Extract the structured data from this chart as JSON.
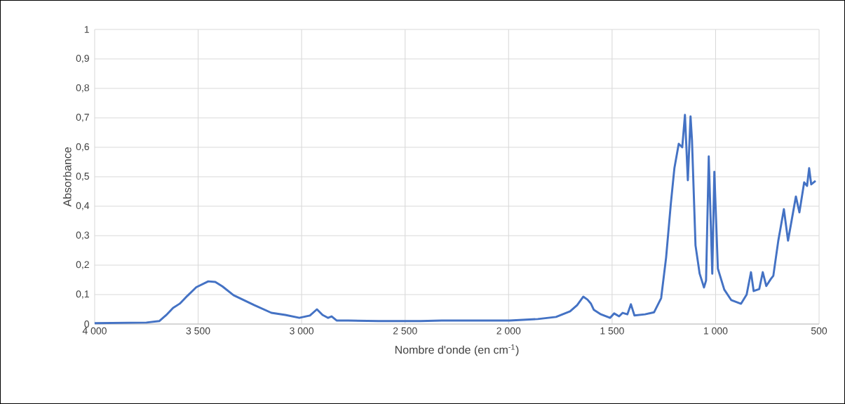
{
  "chart_data": {
    "type": "line",
    "xlabel": "Nombre d'onde (en cm$^{-1}$)",
    "ylabel": "Absorbance",
    "color": "#4472c4",
    "grid": true,
    "marker": "none",
    "line_style": "solid",
    "xlim": [
      4000,
      500
    ],
    "ylim": [
      0,
      1
    ],
    "xticks": [
      {
        "value": 4000,
        "label": "4 000"
      },
      {
        "value": 3500,
        "label": "3 500"
      },
      {
        "value": 3000,
        "label": "3 000"
      },
      {
        "value": 2500,
        "label": "2 500"
      },
      {
        "value": 2000,
        "label": "2 000"
      },
      {
        "value": 1500,
        "label": "1 500"
      },
      {
        "value": 1000,
        "label": "1 000"
      },
      500
    ],
    "yticks": [
      0,
      {
        "value": 0.1,
        "label": "0,1"
      },
      {
        "value": 0.2,
        "label": "0,2"
      },
      {
        "value": 0.3,
        "label": "0,3"
      },
      {
        "value": 0.4,
        "label": "0,4"
      },
      {
        "value": 0.5,
        "label": "0,5"
      },
      {
        "value": 0.6,
        "label": "0,6"
      },
      {
        "value": 0.7,
        "label": "0,7"
      },
      {
        "value": 0.8,
        "label": "0,8"
      },
      {
        "value": 0.9,
        "label": "0,9"
      },
      1
    ],
    "x": [
      4000,
      3750,
      3688,
      3655,
      3621,
      3587,
      3553,
      3509,
      3451,
      3417,
      3383,
      3329,
      3228,
      3146,
      3079,
      3011,
      2960,
      2926,
      2899,
      2872,
      2855,
      2831,
      2774,
      2628,
      2425,
      2323,
      2198,
      1995,
      1859,
      1771,
      1703,
      1669,
      1639,
      1619,
      1602,
      1588,
      1554,
      1510,
      1490,
      1466,
      1449,
      1426,
      1409,
      1392,
      1341,
      1297,
      1263,
      1239,
      1216,
      1199,
      1178,
      1161,
      1148,
      1134,
      1121,
      1114,
      1097,
      1077,
      1056,
      1046,
      1033,
      1016,
      1006,
      989,
      958,
      924,
      877,
      850,
      829,
      816,
      789,
      772,
      755,
      734,
      721,
      697,
      670,
      650,
      612,
      595,
      572,
      558,
      548,
      538,
      517
    ],
    "values": [
      0.003,
      0.005,
      0.01,
      0.03,
      0.055,
      0.07,
      0.095,
      0.125,
      0.145,
      0.143,
      0.128,
      0.098,
      0.064,
      0.038,
      0.031,
      0.021,
      0.029,
      0.05,
      0.031,
      0.021,
      0.026,
      0.012,
      0.012,
      0.01,
      0.01,
      0.012,
      0.012,
      0.012,
      0.017,
      0.024,
      0.043,
      0.064,
      0.093,
      0.083,
      0.069,
      0.048,
      0.033,
      0.021,
      0.036,
      0.026,
      0.038,
      0.033,
      0.067,
      0.029,
      0.033,
      0.04,
      0.088,
      0.226,
      0.41,
      0.529,
      0.612,
      0.6,
      0.71,
      0.488,
      0.705,
      0.624,
      0.267,
      0.171,
      0.124,
      0.148,
      0.569,
      0.171,
      0.517,
      0.188,
      0.117,
      0.081,
      0.069,
      0.1,
      0.176,
      0.112,
      0.119,
      0.176,
      0.129,
      0.152,
      0.164,
      0.283,
      0.39,
      0.283,
      0.433,
      0.379,
      0.481,
      0.469,
      0.529,
      0.474,
      0.486
    ]
  }
}
